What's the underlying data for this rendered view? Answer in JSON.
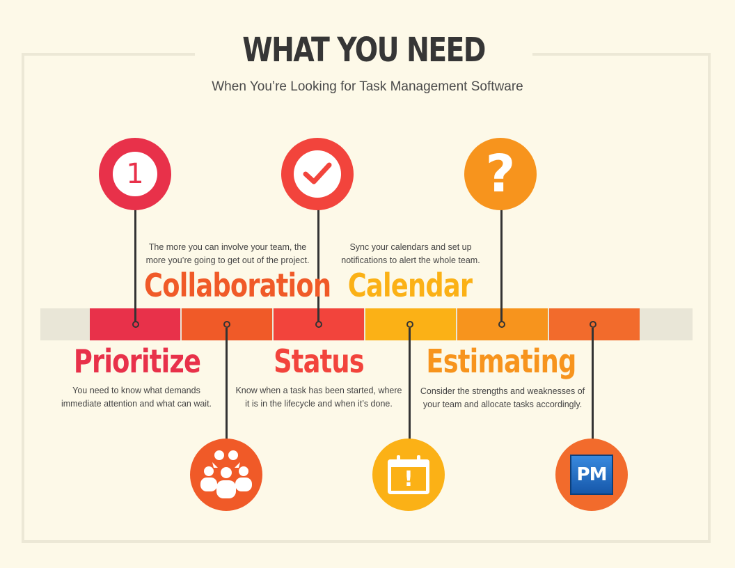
{
  "header": {
    "title": "WHAT YOU NEED",
    "subtitle": "When You’re Looking for Task Management Software"
  },
  "items": [
    {
      "label": "Prioritize",
      "color": "#e8314a",
      "desc": [
        "You need to know what demands",
        "immediate attention and what can wait."
      ],
      "icon": "number-one-icon",
      "icon_text": "1"
    },
    {
      "label": "Collaboration",
      "color": "#f05a28",
      "desc": [
        "The more you can involve your team, the",
        "more you’re going to get out of the project."
      ],
      "icon": "team-people-icon"
    },
    {
      "label": "Status",
      "color": "#f2443c",
      "desc": [
        "Know when a task has been started, where",
        "it is in the lifecycle and when it’s done."
      ],
      "icon": "checkmark-icon"
    },
    {
      "label": "Calendar",
      "color": "#fbb116",
      "desc": [
        "Sync your calendars and set up",
        "notifications to alert the whole team."
      ],
      "icon": "calendar-alert-icon",
      "icon_text": "!"
    },
    {
      "label": "Estimating",
      "color": "#f7941d",
      "desc": [
        "Consider the strengths and weaknesses of",
        "your team and allocate tasks accordingly."
      ],
      "icon": "question-mark-icon",
      "icon_text": "?"
    },
    {
      "label": "",
      "color": "#f26b2c",
      "desc": [],
      "icon": "pm-logo-icon",
      "icon_text": "PM"
    }
  ]
}
